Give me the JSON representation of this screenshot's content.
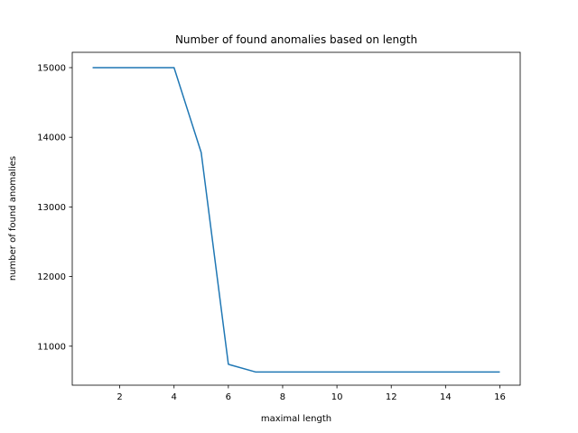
{
  "chart_data": {
    "type": "line",
    "title": "Number of found anomalies based on length",
    "xlabel": "maximal length",
    "ylabel": "number of found anomalies",
    "xlim": [
      0.25,
      16.75
    ],
    "ylim": [
      10440,
      15220
    ],
    "xticks": [
      2,
      4,
      6,
      8,
      10,
      12,
      14,
      16
    ],
    "yticks": [
      11000,
      12000,
      13000,
      14000,
      15000
    ],
    "grid": false,
    "series": [
      {
        "color": "#1f77b4",
        "x": [
          1,
          2,
          3,
          4,
          5,
          6,
          7,
          8,
          9,
          10,
          11,
          12,
          13,
          14,
          15,
          16
        ],
        "y": [
          15000,
          15000,
          15000,
          15000,
          13780,
          10740,
          10630,
          10630,
          10630,
          10630,
          10630,
          10630,
          10630,
          10630,
          10630,
          10630
        ]
      }
    ]
  }
}
